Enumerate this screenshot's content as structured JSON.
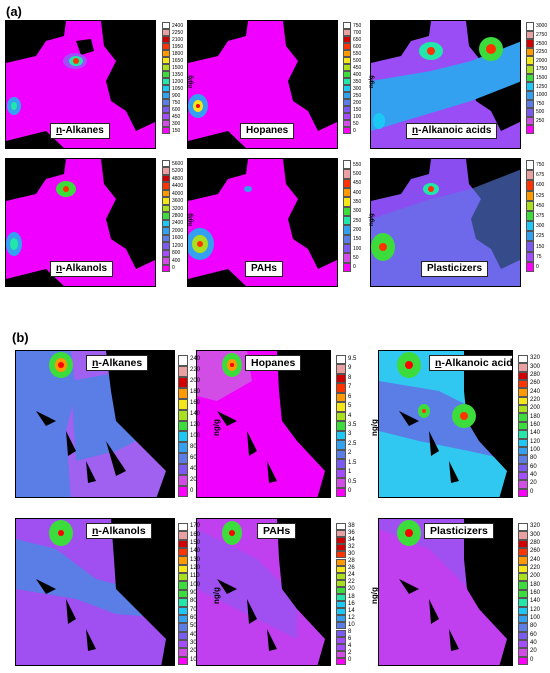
{
  "figure": {
    "section_a_label": "(a)",
    "section_b_label": "(b)",
    "unit": "ng/g"
  },
  "colors": {
    "scale": [
      "#ff00ff",
      "#d24de6",
      "#a34dff",
      "#7a5af0",
      "#5a7de6",
      "#33a0f0",
      "#1ec8f5",
      "#22e6aa",
      "#3ddc3d",
      "#a8e020",
      "#f5e61a",
      "#ff9900",
      "#ff3300",
      "#d20000",
      "#e8a0a0",
      "#ffffff"
    ],
    "land": "#000000",
    "marker": "#ff0000"
  },
  "panels_a": [
    {
      "id": "a1",
      "prefix": "n",
      "label": "-Alkanes",
      "ticks": [
        "2400",
        "2250",
        "2100",
        "1950",
        "1800",
        "1650",
        "1500",
        "1350",
        "1200",
        "1050",
        "900",
        "750",
        "600",
        "450",
        "300",
        "150"
      ],
      "unit": "ng/g",
      "bg": "#f000ff"
    },
    {
      "id": "a2",
      "prefix": "",
      "label": "Hopanes",
      "ticks": [
        "750",
        "700",
        "650",
        "600",
        "550",
        "500",
        "450",
        "400",
        "350",
        "300",
        "250",
        "200",
        "150",
        "100",
        "50",
        "0"
      ],
      "unit": "ng/g",
      "bg": "#f000ff"
    },
    {
      "id": "a3",
      "prefix": "n",
      "label": "-Alkanoic acids",
      "ticks": [
        "3000",
        "2750",
        "2500",
        "2250",
        "2000",
        "1750",
        "1500",
        "1250",
        "1000",
        "750",
        "500",
        "250",
        ""
      ],
      "unit": "ng/g",
      "bg": "#9a4df5"
    },
    {
      "id": "a4",
      "prefix": "n",
      "label": "-Alkanols",
      "ticks": [
        "5600",
        "5200",
        "4800",
        "4400",
        "4000",
        "3600",
        "3200",
        "2800",
        "2400",
        "2000",
        "1600",
        "1200",
        "800",
        "400",
        "0"
      ],
      "unit": "ng/g",
      "bg": "#f000ff"
    },
    {
      "id": "a5",
      "prefix": "",
      "label": "PAHs",
      "ticks": [
        "550",
        "500",
        "450",
        "400",
        "350",
        "300",
        "250",
        "200",
        "150",
        "100",
        "50",
        "0"
      ],
      "unit": "ng/g",
      "bg": "#f000ff"
    },
    {
      "id": "a6",
      "prefix": "",
      "label": "Plasticizers",
      "ticks": [
        "750",
        "675",
        "600",
        "525",
        "450",
        "375",
        "300",
        "225",
        "150",
        "75",
        "0"
      ],
      "unit": "ng/g",
      "bg": "#8a4df0"
    }
  ],
  "panels_b": [
    {
      "id": "b1",
      "prefix": "n",
      "label": "-Alkanes",
      "ticks": [
        "240",
        "220",
        "200",
        "180",
        "160",
        "140",
        "120",
        "100",
        "80",
        "60",
        "40",
        "20",
        "0"
      ],
      "unit": "ng/g",
      "bg": "#a060f0"
    },
    {
      "id": "b2",
      "prefix": "",
      "label": "Hopanes",
      "ticks": [
        "9.5",
        "9",
        "8",
        "7",
        "6",
        "5",
        "4",
        "3.5",
        "3",
        "2.5",
        "2",
        "1.5",
        "1",
        "0.5",
        "0"
      ],
      "unit": "ng/g",
      "bg": "#f000ff"
    },
    {
      "id": "b3",
      "prefix": "n",
      "label": "-Alkanoic acids",
      "ticks": [
        "320",
        "300",
        "280",
        "260",
        "240",
        "220",
        "200",
        "180",
        "160",
        "140",
        "120",
        "100",
        "80",
        "60",
        "40",
        "20",
        "0"
      ],
      "unit": "ng/g",
      "bg": "#30c8f0"
    },
    {
      "id": "b4",
      "prefix": "n",
      "label": "-Alkanols",
      "ticks": [
        "170",
        "160",
        "150",
        "140",
        "130",
        "120",
        "110",
        "100",
        "90",
        "80",
        "70",
        "60",
        "50",
        "40",
        "30",
        "20",
        "10"
      ],
      "unit": "ng/g",
      "bg": "#a050f0"
    },
    {
      "id": "b5",
      "prefix": "",
      "label": "PAHs",
      "ticks": [
        "38",
        "36",
        "34",
        "32",
        "30",
        "28",
        "26",
        "24",
        "22",
        "20",
        "18",
        "16",
        "14",
        "12",
        "10",
        "8",
        "6",
        "4",
        "2",
        "0"
      ],
      "unit": "ng/g",
      "bg": "#c040f0"
    },
    {
      "id": "b6",
      "prefix": "",
      "label": "Plasticizers",
      "ticks": [
        "320",
        "300",
        "280",
        "260",
        "240",
        "220",
        "200",
        "180",
        "160",
        "140",
        "120",
        "100",
        "80",
        "60",
        "40",
        "20",
        "0"
      ],
      "unit": "ng/g",
      "bg": "#a050f0"
    }
  ]
}
